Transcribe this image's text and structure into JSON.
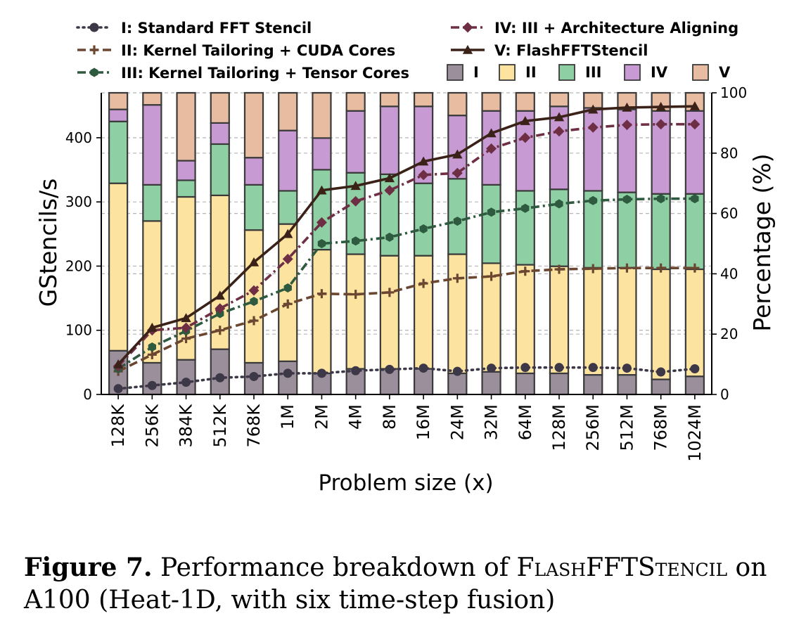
{
  "chart_data": {
    "type": "bar",
    "categories": [
      "128K",
      "256K",
      "384K",
      "512K",
      "768K",
      "1M",
      "2M",
      "4M",
      "8M",
      "16M",
      "24M",
      "32M",
      "64M",
      "128M",
      "256M",
      "512M",
      "768M",
      "1024M"
    ],
    "xlabel": "Problem size (x)",
    "ylabel": "GStencils/s",
    "y2label": "Percentage (%)",
    "ylim": [
      0,
      470
    ],
    "y2lim": [
      0,
      100
    ],
    "yticks": [
      0,
      100,
      200,
      300,
      400
    ],
    "y2ticks": [
      0,
      20,
      40,
      60,
      80,
      100
    ],
    "grid": "horizontal dashed",
    "legend_position": "top",
    "stacked_percentage_bars": [
      {
        "name": "I",
        "color": "#9a8f9b",
        "values": [
          14.5,
          10.5,
          11.5,
          15,
          10.5,
          11,
          7,
          8.5,
          8.5,
          8.5,
          7,
          7.5,
          7,
          7,
          6.5,
          6.5,
          5,
          6
        ]
      },
      {
        "name": "II",
        "color": "#fde3a0",
        "values": [
          55.5,
          47,
          54,
          51,
          44,
          45.5,
          41,
          38,
          37.5,
          37.5,
          39.5,
          36,
          36,
          35.5,
          35.5,
          35.5,
          36.5,
          35.5
        ]
      },
      {
        "name": "III",
        "color": "#8ecfa4",
        "values": [
          20.5,
          12,
          5.5,
          17,
          15,
          11,
          26.5,
          27,
          27,
          24,
          25,
          26,
          24.5,
          25.5,
          25.5,
          25,
          25,
          25
        ]
      },
      {
        "name": "IV",
        "color": "#c79ad4",
        "values": [
          4,
          26.5,
          6.5,
          7,
          9,
          20,
          10.5,
          20.5,
          22.5,
          25.5,
          21,
          24.5,
          26.5,
          27.5,
          27.5,
          27.5,
          27.5,
          27.5
        ]
      },
      {
        "name": "V",
        "color": "#e7bca0",
        "values": [
          5.5,
          4,
          22.5,
          10,
          21.5,
          12.5,
          15,
          6,
          4.5,
          4.5,
          7.5,
          6,
          6,
          4.5,
          5,
          5.5,
          6,
          6
        ]
      }
    ],
    "series": [
      {
        "name": "I: Standard FFT Stencil",
        "color": "#3d3847",
        "dash": "dotted",
        "marker": "circle",
        "values": [
          9,
          14,
          19,
          26,
          28,
          33,
          33,
          37,
          39,
          41,
          36,
          41,
          42,
          42,
          42,
          41,
          35,
          40
        ]
      },
      {
        "name": "II: Kernel Tailoring + CUDA Cores",
        "color": "#6b4630",
        "dash": "dashed",
        "marker": "plus",
        "values": [
          36,
          62,
          87,
          100,
          115,
          141,
          157,
          156,
          159,
          173,
          181,
          184,
          192,
          195,
          196,
          197,
          197,
          197
        ]
      },
      {
        "name": "III: Kernel Tailoring + Tensor Cores",
        "color": "#2e5a3f",
        "dash": "dashdot",
        "marker": "hexagon",
        "values": [
          40,
          74,
          99,
          126,
          145,
          166,
          235,
          239,
          245,
          258,
          270,
          284,
          290,
          297,
          302,
          304,
          305,
          305
        ]
      },
      {
        "name": "IV: III + Architecture Aligning",
        "color": "#6e2f45",
        "dash": "dashdot",
        "marker": "diamond",
        "values": [
          44,
          100,
          104,
          134,
          162,
          211,
          268,
          301,
          318,
          342,
          345,
          383,
          400,
          410,
          416,
          420,
          421,
          421
        ]
      },
      {
        "name": "V: FlashFFTStencil",
        "color": "#3b2218",
        "dash": "solid",
        "marker": "triangle",
        "values": [
          47,
          104,
          119,
          154,
          206,
          250,
          318,
          325,
          337,
          363,
          374,
          407,
          426,
          432,
          444,
          447,
          448,
          449
        ]
      }
    ]
  },
  "caption": {
    "label": "Figure 7.",
    "text_before": "Performance breakdown of ",
    "name": "FlashFFTStencil",
    "text_after": " on A100 (Heat-1D, with six time-step fusion)"
  }
}
